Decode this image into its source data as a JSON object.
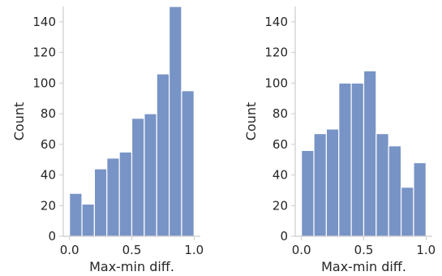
{
  "chart_data": [
    {
      "type": "bar",
      "subtype": "histogram",
      "title": "",
      "xlabel": "Max-min diff.",
      "ylabel": "Count",
      "bin_edges": [
        0.0,
        0.1,
        0.2,
        0.3,
        0.4,
        0.5,
        0.6,
        0.7,
        0.8,
        0.9,
        1.0
      ],
      "values": [
        28,
        21,
        44,
        51,
        55,
        77,
        80,
        106,
        150,
        95
      ],
      "xlim": [
        -0.05,
        1.05
      ],
      "ylim": [
        0,
        150
      ],
      "xticks": [
        "0.0",
        "0.5",
        "1.0"
      ],
      "yticks": [
        "0",
        "20",
        "40",
        "60",
        "80",
        "100",
        "120",
        "140"
      ],
      "color": "#7894c6",
      "grid": false
    },
    {
      "type": "bar",
      "subtype": "histogram",
      "title": "",
      "xlabel": "Max-min diff.",
      "ylabel": "Count",
      "bin_edges": [
        0.0,
        0.1,
        0.2,
        0.3,
        0.4,
        0.5,
        0.6,
        0.7,
        0.8,
        0.9,
        1.0
      ],
      "values": [
        56,
        67,
        70,
        100,
        100,
        108,
        67,
        59,
        32,
        48
      ],
      "xlim": [
        -0.05,
        1.05
      ],
      "ylim": [
        0,
        150
      ],
      "xticks": [
        "0.0",
        "0.5",
        "1.0"
      ],
      "yticks": [
        "0",
        "20",
        "40",
        "60",
        "80",
        "100",
        "120",
        "140"
      ],
      "color": "#7894c6",
      "grid": false
    }
  ]
}
